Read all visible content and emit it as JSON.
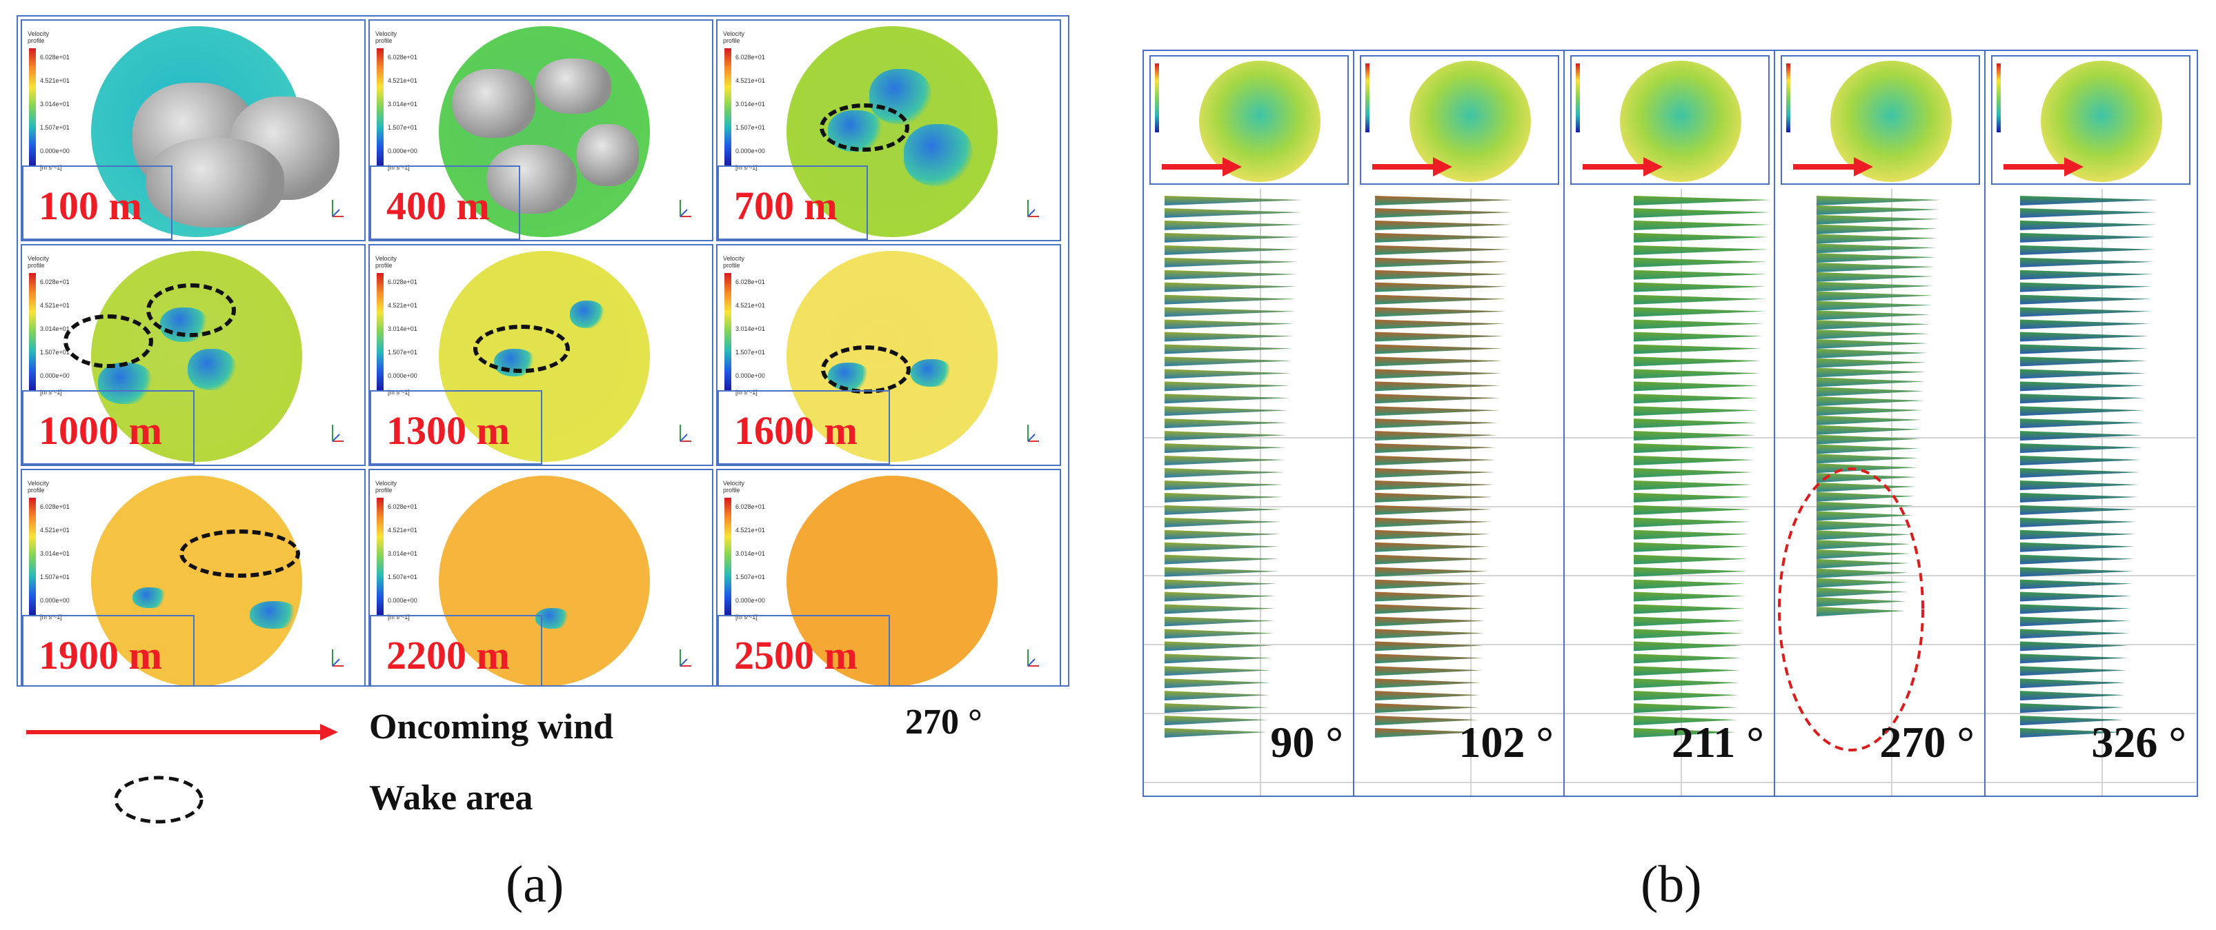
{
  "panel_a": {
    "legend_title": "Velocity\nprofile",
    "legend_ticks": [
      "6.028e+01",
      "4.521e+01",
      "3.014e+01",
      "1.507e+01",
      "0.000e+00",
      "[m s^-1]"
    ],
    "cells": [
      {
        "distance": "100 m",
        "bg": "#3dc9c2",
        "disk": "#22b8c8"
      },
      {
        "distance": "400 m",
        "bg": "#5ccf55",
        "disk": "#57c95d"
      },
      {
        "distance": "700 m",
        "bg": "#a5d63a",
        "disk": "#a3d442"
      },
      {
        "distance": "1000 m",
        "bg": "#b7d83c",
        "disk": "#b9d94a"
      },
      {
        "distance": "1300 m",
        "bg": "#e3e34b",
        "disk": "#e1e24d"
      },
      {
        "distance": "1600 m",
        "bg": "#f1e360",
        "disk": "#f3e05f"
      },
      {
        "distance": "1900 m",
        "bg": "#f5c242",
        "disk": "#f5c242"
      },
      {
        "distance": "2200 m",
        "bg": "#f6b53c",
        "disk": "#f6b53c"
      },
      {
        "distance": "2500 m",
        "bg": "#f6a834",
        "disk": "#f6a834"
      }
    ],
    "legend": {
      "oncoming_wind": "Oncoming wind",
      "wake_area": "Wake area",
      "direction": "270 °"
    },
    "label": "(a)"
  },
  "panel_b": {
    "columns": [
      {
        "angle": "90 °",
        "color_top": "#8aa21f",
        "color_bottom": "#1a6ea0"
      },
      {
        "angle": "102 °",
        "color_top": "#a8571b",
        "color_bottom": "#1b8b6a"
      },
      {
        "angle": "211 °",
        "color_top": "#5d9f23",
        "color_bottom": "#1d8e5e"
      },
      {
        "angle": "270 °",
        "color_top": "#6ea227",
        "color_bottom": "#1c7a8a"
      },
      {
        "angle": "326 °",
        "color_top": "#2f8f3a",
        "color_bottom": "#1a4fa6"
      }
    ],
    "label": "(b)"
  },
  "colors": {
    "frame": "#4a72c4",
    "distance_text": "#ee1c25",
    "wind_arrow": "#ee1c25",
    "wake_ellipse": "#111111",
    "highlight_ellipse": "#dd1c1c"
  }
}
